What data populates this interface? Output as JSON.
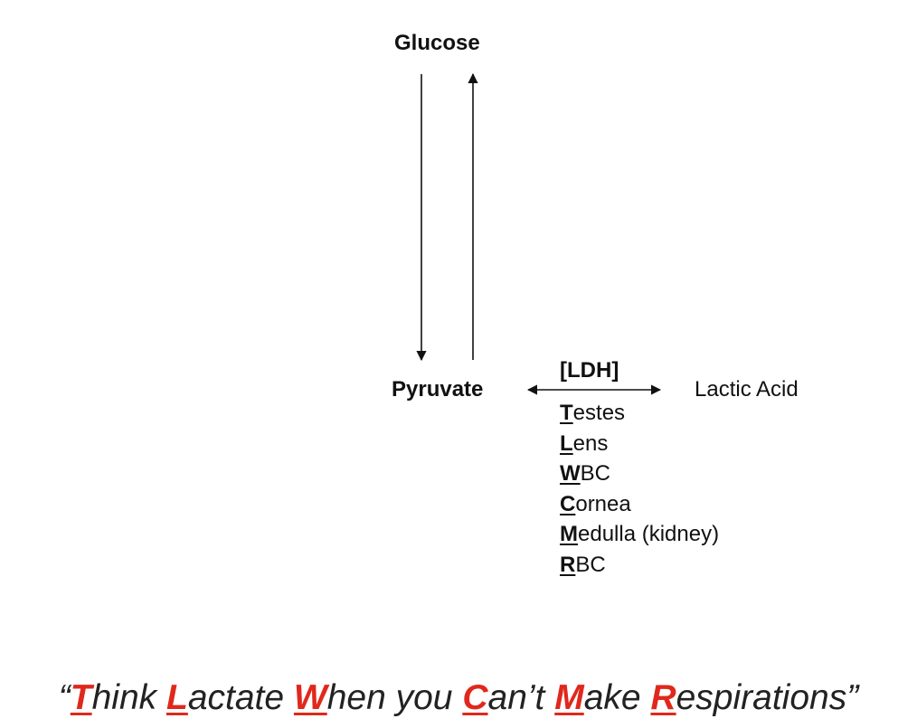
{
  "diagram": {
    "top_label": "Glucose",
    "left_label": "Pyruvate",
    "enzyme_label": "[LDH]",
    "right_label": "Lactic Acid",
    "tissues": [
      {
        "initial": "T",
        "rest": "estes"
      },
      {
        "initial": "L",
        "rest": "ens"
      },
      {
        "initial": "W",
        "rest": "BC"
      },
      {
        "initial": "C",
        "rest": "ornea"
      },
      {
        "initial": "M",
        "rest": "edulla (kidney)"
      },
      {
        "initial": "R",
        "rest": "BC"
      }
    ],
    "arrow_color": "#111111"
  },
  "mnemonic": {
    "open_quote": "“",
    "close_quote": "”",
    "parts": [
      {
        "initial": "T",
        "rest": "hink "
      },
      {
        "initial": "L",
        "rest": "actate "
      },
      {
        "initial": "W",
        "rest": "hen you "
      },
      {
        "initial": "C",
        "rest": "an’t "
      },
      {
        "initial": "M",
        "rest": "ake "
      },
      {
        "initial": "R",
        "rest": "espirations"
      }
    ],
    "highlight_color": "#e0281c",
    "text_color": "#222222"
  }
}
